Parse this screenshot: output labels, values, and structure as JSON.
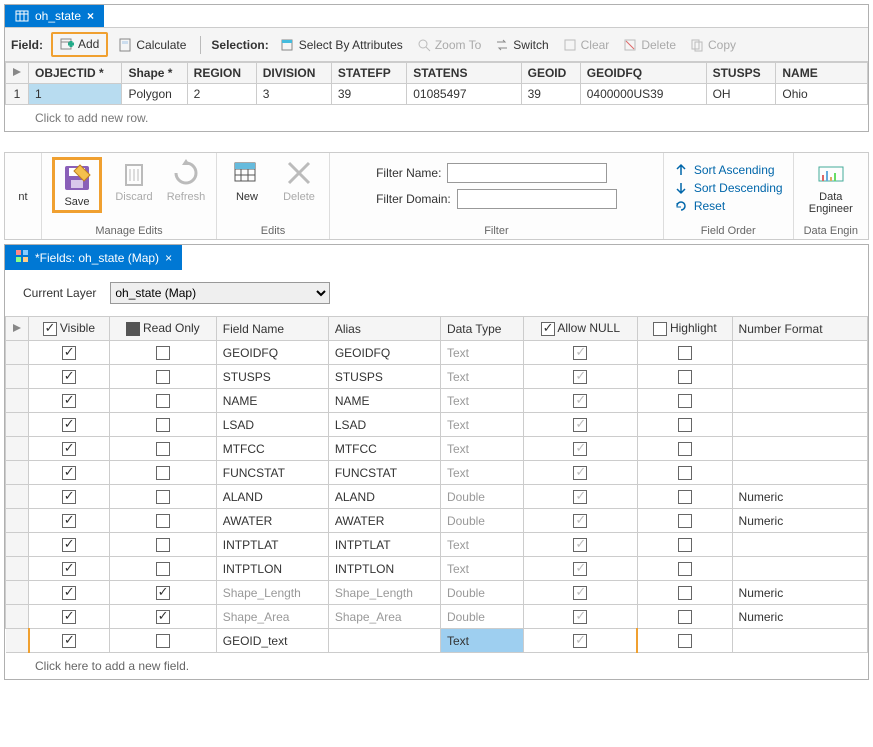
{
  "colors": {
    "accent": "#0078d4",
    "highlight_border": "#f0a030",
    "sel_blue": "#9ecff0",
    "muted": "#999999"
  },
  "top": {
    "tab_title": "oh_state",
    "toolbar": {
      "field_label": "Field:",
      "add": "Add",
      "calculate": "Calculate",
      "selection_label": "Selection:",
      "select_by_attr": "Select By Attributes",
      "zoom_to": "Zoom To",
      "switch": "Switch",
      "clear": "Clear",
      "delete": "Delete",
      "copy": "Copy"
    },
    "columns": [
      "OBJECTID *",
      "Shape *",
      "REGION",
      "DIVISION",
      "STATEFP",
      "STATENS",
      "GEOID",
      "GEOIDFQ",
      "STUSPS",
      "NAME"
    ],
    "row": {
      "num": "1",
      "OBJECTID": "1",
      "Shape": "Polygon",
      "REGION": "2",
      "DIVISION": "3",
      "STATEFP": "39",
      "STATENS": "01085497",
      "GEOID": "39",
      "GEOIDFQ": "0400000US39",
      "STUSPS": "OH",
      "NAME": "Ohio"
    },
    "add_row_hint": "Click to add new row."
  },
  "ribbon": {
    "truncated_left": "nt",
    "manage_edits": {
      "label": "Manage Edits",
      "save": "Save",
      "discard": "Discard",
      "refresh": "Refresh"
    },
    "edits": {
      "label": "Edits",
      "new": "New",
      "delete": "Delete"
    },
    "filter": {
      "label": "Filter",
      "name": "Filter Name:",
      "domain": "Filter Domain:"
    },
    "field_order": {
      "label": "Field Order",
      "asc": "Sort Ascending",
      "desc": "Sort Descending",
      "reset": "Reset"
    },
    "data_eng": {
      "label": "Data Engin",
      "btn": "Data Engineer"
    }
  },
  "fields": {
    "tab_title": "*Fields: oh_state (Map)",
    "current_layer_label": "Current Layer",
    "layer_value": "oh_state (Map)",
    "headers": {
      "visible": "Visible",
      "readonly": "Read Only",
      "fieldname": "Field Name",
      "alias": "Alias",
      "datatype": "Data Type",
      "allownull": "Allow NULL",
      "highlight": "Highlight",
      "numfmt": "Number Format"
    },
    "rows": [
      {
        "visible": true,
        "readonly": false,
        "name": "GEOIDFQ",
        "alias": "GEOIDFQ",
        "type": "Text",
        "null": true,
        "hl": false,
        "fmt": "",
        "muted": false
      },
      {
        "visible": true,
        "readonly": false,
        "name": "STUSPS",
        "alias": "STUSPS",
        "type": "Text",
        "null": true,
        "hl": false,
        "fmt": "",
        "muted": false
      },
      {
        "visible": true,
        "readonly": false,
        "name": "NAME",
        "alias": "NAME",
        "type": "Text",
        "null": true,
        "hl": false,
        "fmt": "",
        "muted": false
      },
      {
        "visible": true,
        "readonly": false,
        "name": "LSAD",
        "alias": "LSAD",
        "type": "Text",
        "null": true,
        "hl": false,
        "fmt": "",
        "muted": false
      },
      {
        "visible": true,
        "readonly": false,
        "name": "MTFCC",
        "alias": "MTFCC",
        "type": "Text",
        "null": true,
        "hl": false,
        "fmt": "",
        "muted": false
      },
      {
        "visible": true,
        "readonly": false,
        "name": "FUNCSTAT",
        "alias": "FUNCSTAT",
        "type": "Text",
        "null": true,
        "hl": false,
        "fmt": "",
        "muted": false
      },
      {
        "visible": true,
        "readonly": false,
        "name": "ALAND",
        "alias": "ALAND",
        "type": "Double",
        "null": true,
        "hl": false,
        "fmt": "Numeric",
        "muted": false
      },
      {
        "visible": true,
        "readonly": false,
        "name": "AWATER",
        "alias": "AWATER",
        "type": "Double",
        "null": true,
        "hl": false,
        "fmt": "Numeric",
        "muted": false
      },
      {
        "visible": true,
        "readonly": false,
        "name": "INTPTLAT",
        "alias": "INTPTLAT",
        "type": "Text",
        "null": true,
        "hl": false,
        "fmt": "",
        "muted": false
      },
      {
        "visible": true,
        "readonly": false,
        "name": "INTPTLON",
        "alias": "INTPTLON",
        "type": "Text",
        "null": true,
        "hl": false,
        "fmt": "",
        "muted": false
      },
      {
        "visible": true,
        "readonly": true,
        "name": "Shape_Length",
        "alias": "Shape_Length",
        "type": "Double",
        "null": true,
        "hl": false,
        "fmt": "Numeric",
        "muted": true
      },
      {
        "visible": true,
        "readonly": true,
        "name": "Shape_Area",
        "alias": "Shape_Area",
        "type": "Double",
        "null": true,
        "hl": false,
        "fmt": "Numeric",
        "muted": true
      }
    ],
    "new_row": {
      "visible": true,
      "readonly": false,
      "name": "GEOID_text",
      "alias": "",
      "type": "Text",
      "null": true,
      "hl": false,
      "fmt": ""
    },
    "add_hint": "Click here to add a new field."
  }
}
